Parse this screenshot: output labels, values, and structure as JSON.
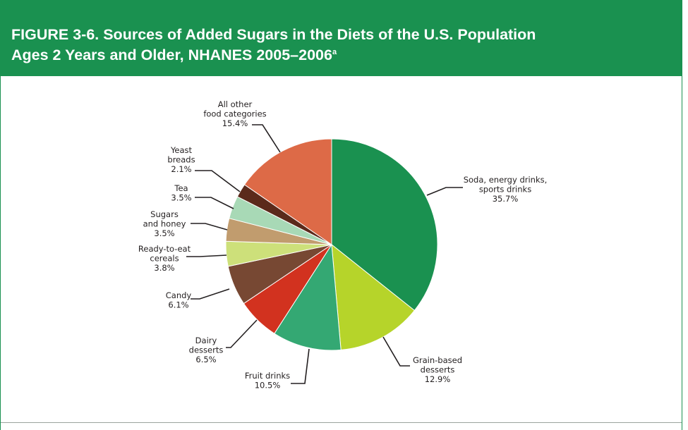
{
  "figure": {
    "title_line1": "FIGURE 3-6. Sources of Added Sugars in the Diets of the U.S. Population",
    "title_line2": "Ages 2 Years and Older, NHANES 2005–2006",
    "title_superscript": "a",
    "header_color": "#1a9150"
  },
  "chart_data": {
    "type": "pie",
    "title": "Sources of Added Sugars in the Diets of the U.S. Population Ages 2 Years and Older, NHANES 2005–2006",
    "unit": "%",
    "start": "12 o'clock, clockwise",
    "slices": [
      {
        "label": "Soda, energy drinks, sports drinks",
        "label_lines": [
          "Soda, energy drinks,",
          "sports drinks"
        ],
        "value": 35.7,
        "value_text": "35.7%",
        "color": "#1a9150"
      },
      {
        "label": "Grain-based desserts",
        "label_lines": [
          "Grain-based",
          "desserts"
        ],
        "value": 12.9,
        "value_text": "12.9%",
        "color": "#b6d42a"
      },
      {
        "label": "Fruit drinks",
        "label_lines": [
          "Fruit drinks"
        ],
        "value": 10.5,
        "value_text": "10.5%",
        "color": "#34a873"
      },
      {
        "label": "Dairy desserts",
        "label_lines": [
          "Dairy",
          "desserts"
        ],
        "value": 6.5,
        "value_text": "6.5%",
        "color": "#d2321f"
      },
      {
        "label": "Candy",
        "label_lines": [
          "Candy"
        ],
        "value": 6.1,
        "value_text": "6.1%",
        "color": "#774833"
      },
      {
        "label": "Ready-to-eat cereals",
        "label_lines": [
          "Ready-to-eat",
          "cereals"
        ],
        "value": 3.8,
        "value_text": "3.8%",
        "color": "#cde07a"
      },
      {
        "label": "Sugars and honey",
        "label_lines": [
          "Sugars",
          "and honey"
        ],
        "value": 3.5,
        "value_text": "3.5%",
        "color": "#c19c6e"
      },
      {
        "label": "Tea",
        "label_lines": [
          "Tea"
        ],
        "value": 3.5,
        "value_text": "3.5%",
        "color": "#a8d9b6"
      },
      {
        "label": "Yeast breads",
        "label_lines": [
          "Yeast",
          "breads"
        ],
        "value": 2.1,
        "value_text": "2.1%",
        "color": "#5b2a1b"
      },
      {
        "label": "All other food categories",
        "label_lines": [
          "All other",
          "food categories"
        ],
        "value": 15.4,
        "value_text": "15.4%",
        "color": "#dd6a47"
      }
    ]
  }
}
